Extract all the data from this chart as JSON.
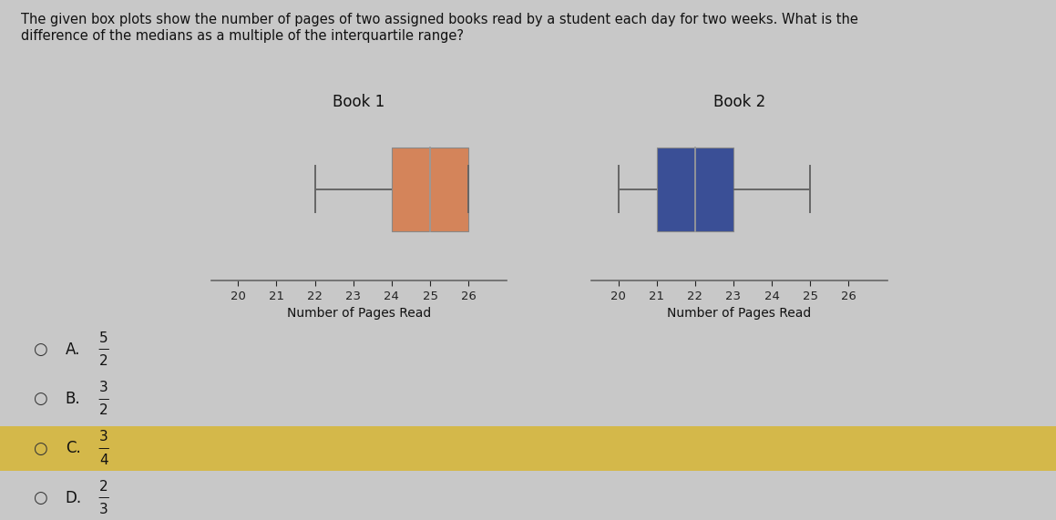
{
  "title_text": "The given box plots show the number of pages of two assigned books read by a student each day for two weeks. What is the\ndifference of the medians as a multiple of the interquartile range?",
  "book1_title": "Book 1",
  "book2_title": "Book 2",
  "book1": {
    "min": 22,
    "q1": 24,
    "median": 25,
    "q3": 26,
    "max": 26,
    "color": "#D4845A",
    "xlim": [
      19.3,
      27.0
    ],
    "xticks": [
      20,
      21,
      22,
      23,
      24,
      25,
      26
    ],
    "xlabel": "Number of Pages Read"
  },
  "book2": {
    "min": 20,
    "q1": 21,
    "median": 22,
    "q3": 23,
    "max": 25,
    "color": "#3A4F96",
    "xlim": [
      19.3,
      27.0
    ],
    "xticks": [
      20,
      21,
      22,
      23,
      24,
      25,
      26
    ],
    "xlabel": "Number of Pages Read"
  },
  "choices": [
    {
      "label": "A.",
      "value": "5/2",
      "highlight": false
    },
    {
      "label": "B.",
      "value": "3/2",
      "highlight": false
    },
    {
      "label": "C.",
      "value": "3/4",
      "highlight": true
    },
    {
      "label": "D.",
      "value": "2/3",
      "highlight": false
    }
  ],
  "bg_color": "#C8C8C8",
  "highlight_color": "#D4B84A",
  "fig_bg": "#C8C8C8",
  "white_bg": "#E8E8E8"
}
